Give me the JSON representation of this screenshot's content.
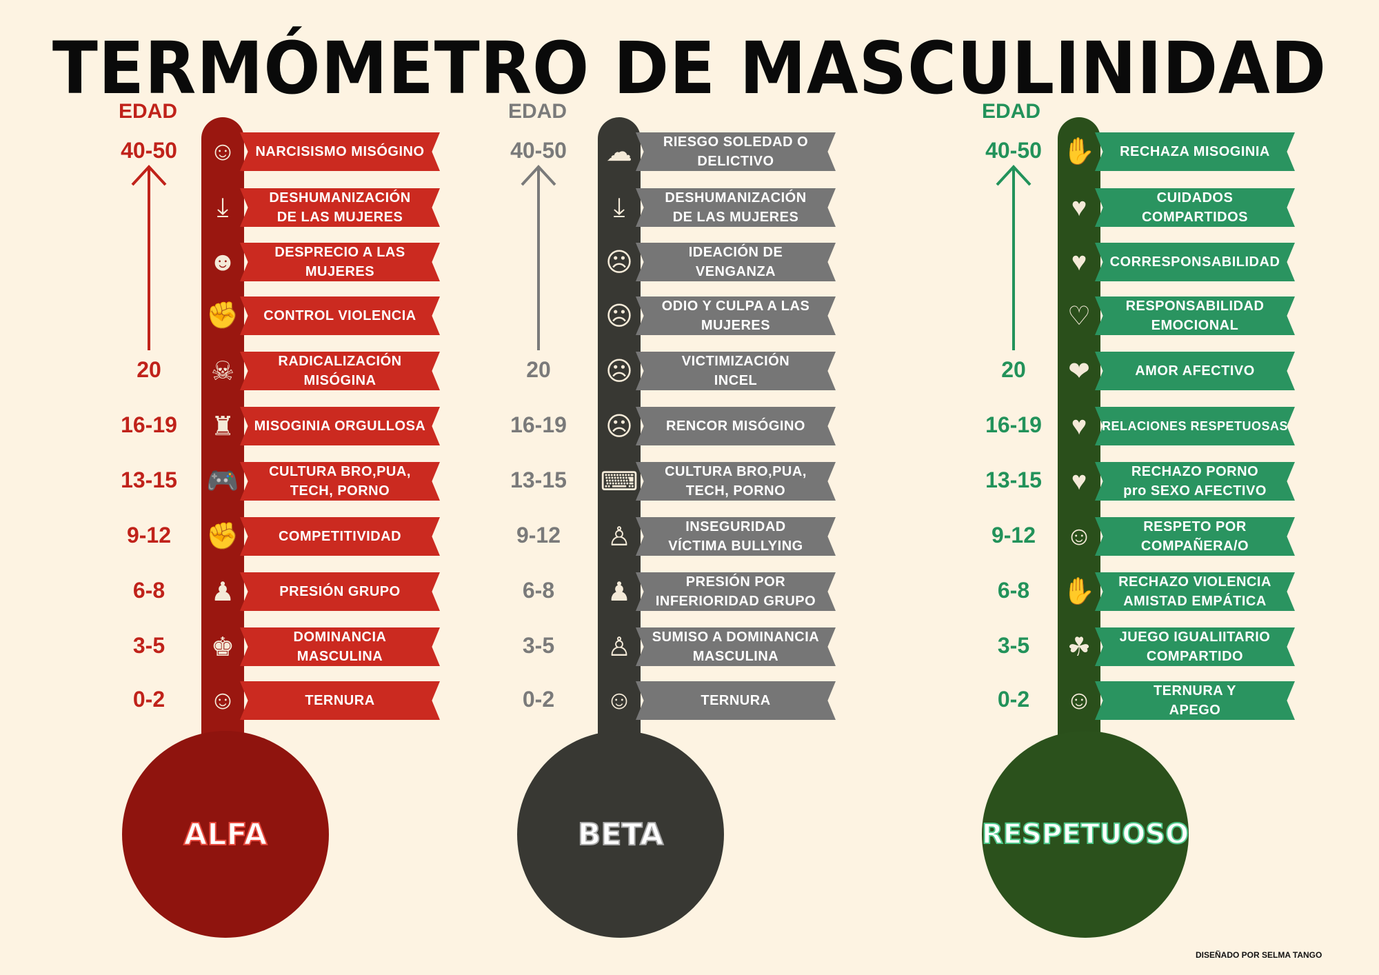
{
  "title": "TERMÓMETRO DE MASCULINIDAD",
  "credit": "DISEÑADO POR SELMA TANGO",
  "ages": [
    "40-50",
    "20",
    "16-19",
    "13-15",
    "9-12",
    "6-8",
    "3-5",
    "0-2"
  ],
  "thermometers": [
    {
      "id": "alfa",
      "edad_label": "EDAD",
      "bulb_label": "ALFA",
      "colors": {
        "tube": "#9a1710",
        "bulb": "#8f140e",
        "banner": "#cb2a20",
        "age": "#c0221a",
        "bulb_text_stroke": "#e84a3e"
      },
      "items": [
        {
          "text": "NARCISISMO MISÓGINO",
          "icon": "devil-face-icon",
          "glyph": "☺"
        },
        {
          "text": "DESHUMANIZACIÓN\nDE LAS MUJERES",
          "icon": "falling-woman-icon",
          "glyph": "⤓"
        },
        {
          "text": "DESPRECIO A LAS\nMUJERES",
          "icon": "horned-face-icon",
          "glyph": "☻"
        },
        {
          "text": "CONTROL VIOLENCIA",
          "icon": "fight-icon",
          "glyph": "✊"
        },
        {
          "text": "RADICALIZACIÓN\nMISÓGINA",
          "icon": "masked-gunman-icon",
          "glyph": "☠"
        },
        {
          "text": "MISOGINIA ORGULLOSA",
          "icon": "podium-man-icon",
          "glyph": "♜"
        },
        {
          "text": "CULTURA BRO,PUA,\nTECH, PORNO",
          "icon": "gamepad-icon",
          "glyph": "🎮"
        },
        {
          "text": "COMPETITIVIDAD",
          "icon": "boxers-icon",
          "glyph": "✊"
        },
        {
          "text": "PRESIÓN GRUPO",
          "icon": "crowd-icon",
          "glyph": "♟"
        },
        {
          "text": "DOMINANCIA\nMASCULINA",
          "icon": "leader-group-icon",
          "glyph": "♚"
        },
        {
          "text": "TERNURA",
          "icon": "baby-face-icon",
          "glyph": "☺"
        }
      ]
    },
    {
      "id": "beta",
      "edad_label": "EDAD",
      "bulb_label": "BETA",
      "colors": {
        "tube": "#383833",
        "bulb": "#383833",
        "banner": "#767676",
        "age": "#7a7a7a",
        "bulb_text_stroke": "#a8a8a8"
      },
      "items": [
        {
          "text": "RIESGO SOLEDAD O\nDELICTIVO",
          "icon": "lonely-man-icon",
          "glyph": "☁"
        },
        {
          "text": "DESHUMANIZACIÓN\nDE LAS MUJERES",
          "icon": "falling-woman-icon",
          "glyph": "⤓"
        },
        {
          "text": "IDEACIÓN DE\nVENGANZA",
          "icon": "angry-man-icon",
          "glyph": "☹"
        },
        {
          "text": "ODIO Y CULPA A LAS\nMUJERES",
          "icon": "angry-face-icon",
          "glyph": "☹"
        },
        {
          "text": "VICTIMIZACIÓN\nINCEL",
          "icon": "sad-man-icon",
          "glyph": "☹"
        },
        {
          "text": "RENCOR MISÓGINO",
          "icon": "resentful-face-icon",
          "glyph": "☹"
        },
        {
          "text": "CULTURA BRO,PUA,\nTECH, PORNO",
          "icon": "computer-user-icon",
          "glyph": "⌨"
        },
        {
          "text": "INSEGURIDAD\nVÍCTIMA BULLYING",
          "icon": "bullied-child-icon",
          "glyph": "♙"
        },
        {
          "text": "PRESIÓN POR\nINFERIORIDAD GRUPO",
          "icon": "group-pressure-icon",
          "glyph": "♟"
        },
        {
          "text": "SUMISO A DOMINANCIA\nMASCULINA",
          "icon": "submissive-child-icon",
          "glyph": "♙"
        },
        {
          "text": "TERNURA",
          "icon": "baby-face-icon",
          "glyph": "☺"
        }
      ]
    },
    {
      "id": "respetuoso",
      "edad_label": "EDAD",
      "bulb_label": "RESPETUOSO",
      "colors": {
        "tube": "#2a4f1b",
        "bulb": "#2b511c",
        "banner": "#2a9460",
        "age": "#22925a",
        "bulb_text_stroke": "#4ec88a"
      },
      "items": [
        {
          "text": "RECHAZA MISOGINIA",
          "icon": "stop-hand-icon",
          "glyph": "✋"
        },
        {
          "text": "CUIDADOS\nCOMPARTIDOS",
          "icon": "couple-hug-icon",
          "glyph": "♥"
        },
        {
          "text": "CORRESPONSABILIDAD",
          "icon": "family-icon",
          "glyph": "♥"
        },
        {
          "text": "RESPONSABILIDAD\nEMOCIONAL",
          "icon": "heart-hand-icon",
          "glyph": "♡"
        },
        {
          "text": "AMOR AFECTIVO",
          "icon": "heart-hands-icon",
          "glyph": "❤"
        },
        {
          "text": "RELACIONES RESPETUOSAS",
          "icon": "couple-heart-icon",
          "glyph": "♥"
        },
        {
          "text": "RECHAZO PORNO\npro SEXO AFECTIVO",
          "icon": "embracing-couple-icon",
          "glyph": "♥"
        },
        {
          "text": "RESPETO POR\nCOMPAÑERA/O",
          "icon": "friends-icon",
          "glyph": "☺"
        },
        {
          "text": "RECHAZO VIOLENCIA\nAMISTAD EMPÁTICA",
          "icon": "no-violence-icon",
          "glyph": "✋"
        },
        {
          "text": "JUEGO IGUALIITARIO\nCOMPARTIDO",
          "icon": "kids-playing-icon",
          "glyph": "☘"
        },
        {
          "text": "TERNURA Y\nAPEGO",
          "icon": "mother-baby-icon",
          "glyph": "☺"
        }
      ]
    }
  ]
}
